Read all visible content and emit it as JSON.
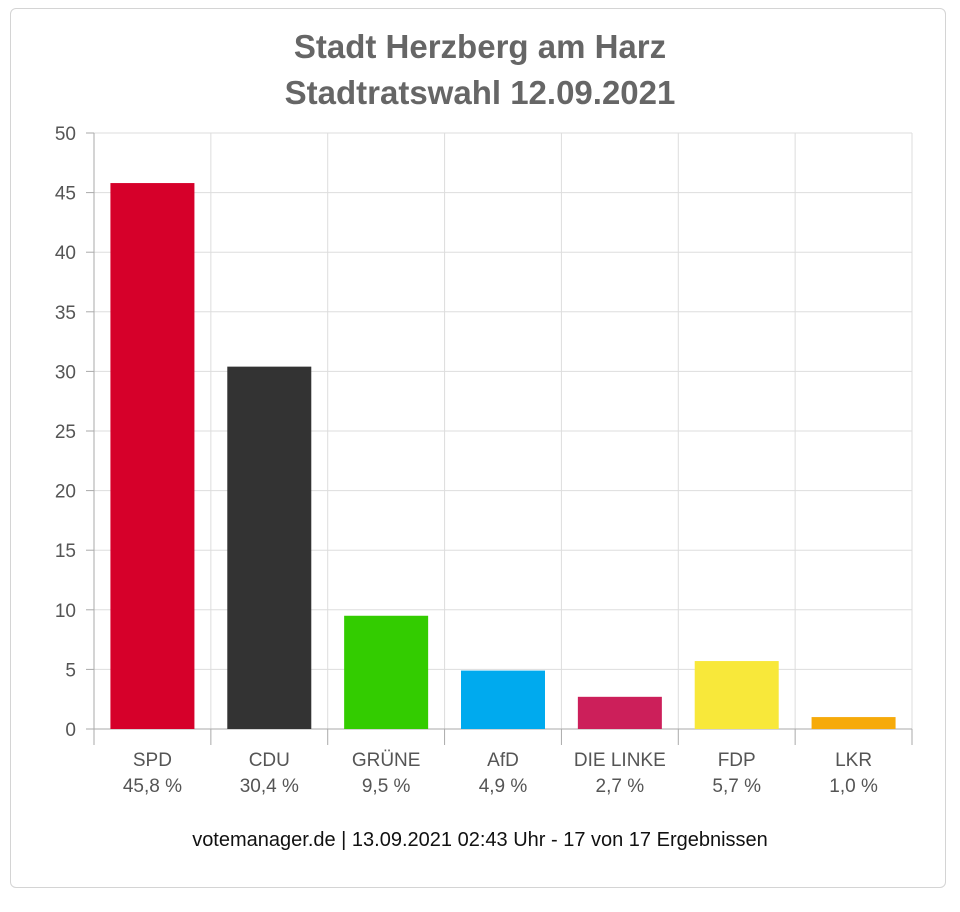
{
  "chart_data": {
    "type": "bar",
    "title": "Stadt Herzberg am Harz",
    "subtitle": "Stadtratswahl 12.09.2021",
    "categories": [
      "SPD",
      "CDU",
      "GRÜNE",
      "AfD",
      "DIE LINKE",
      "FDP",
      "LKR"
    ],
    "value_labels": [
      "45,8 %",
      "30,4 %",
      "9,5 %",
      "4,9 %",
      "2,7 %",
      "5,7 %",
      "1,0 %"
    ],
    "values": [
      45.8,
      30.4,
      9.5,
      4.9,
      2.7,
      5.7,
      1.0
    ],
    "colors": [
      "#d6002a",
      "#333333",
      "#33cc00",
      "#00aaee",
      "#cc1f5a",
      "#f8e83a",
      "#f6aa0a"
    ],
    "ylim": [
      0,
      50
    ],
    "yticks": [
      0,
      5,
      10,
      15,
      20,
      25,
      30,
      35,
      40,
      45,
      50
    ],
    "xlabel": "",
    "ylabel": "",
    "grid": true,
    "source": "votemanager.de | 13.09.2021 02:43 Uhr - 17 von 17 Ergebnissen"
  }
}
